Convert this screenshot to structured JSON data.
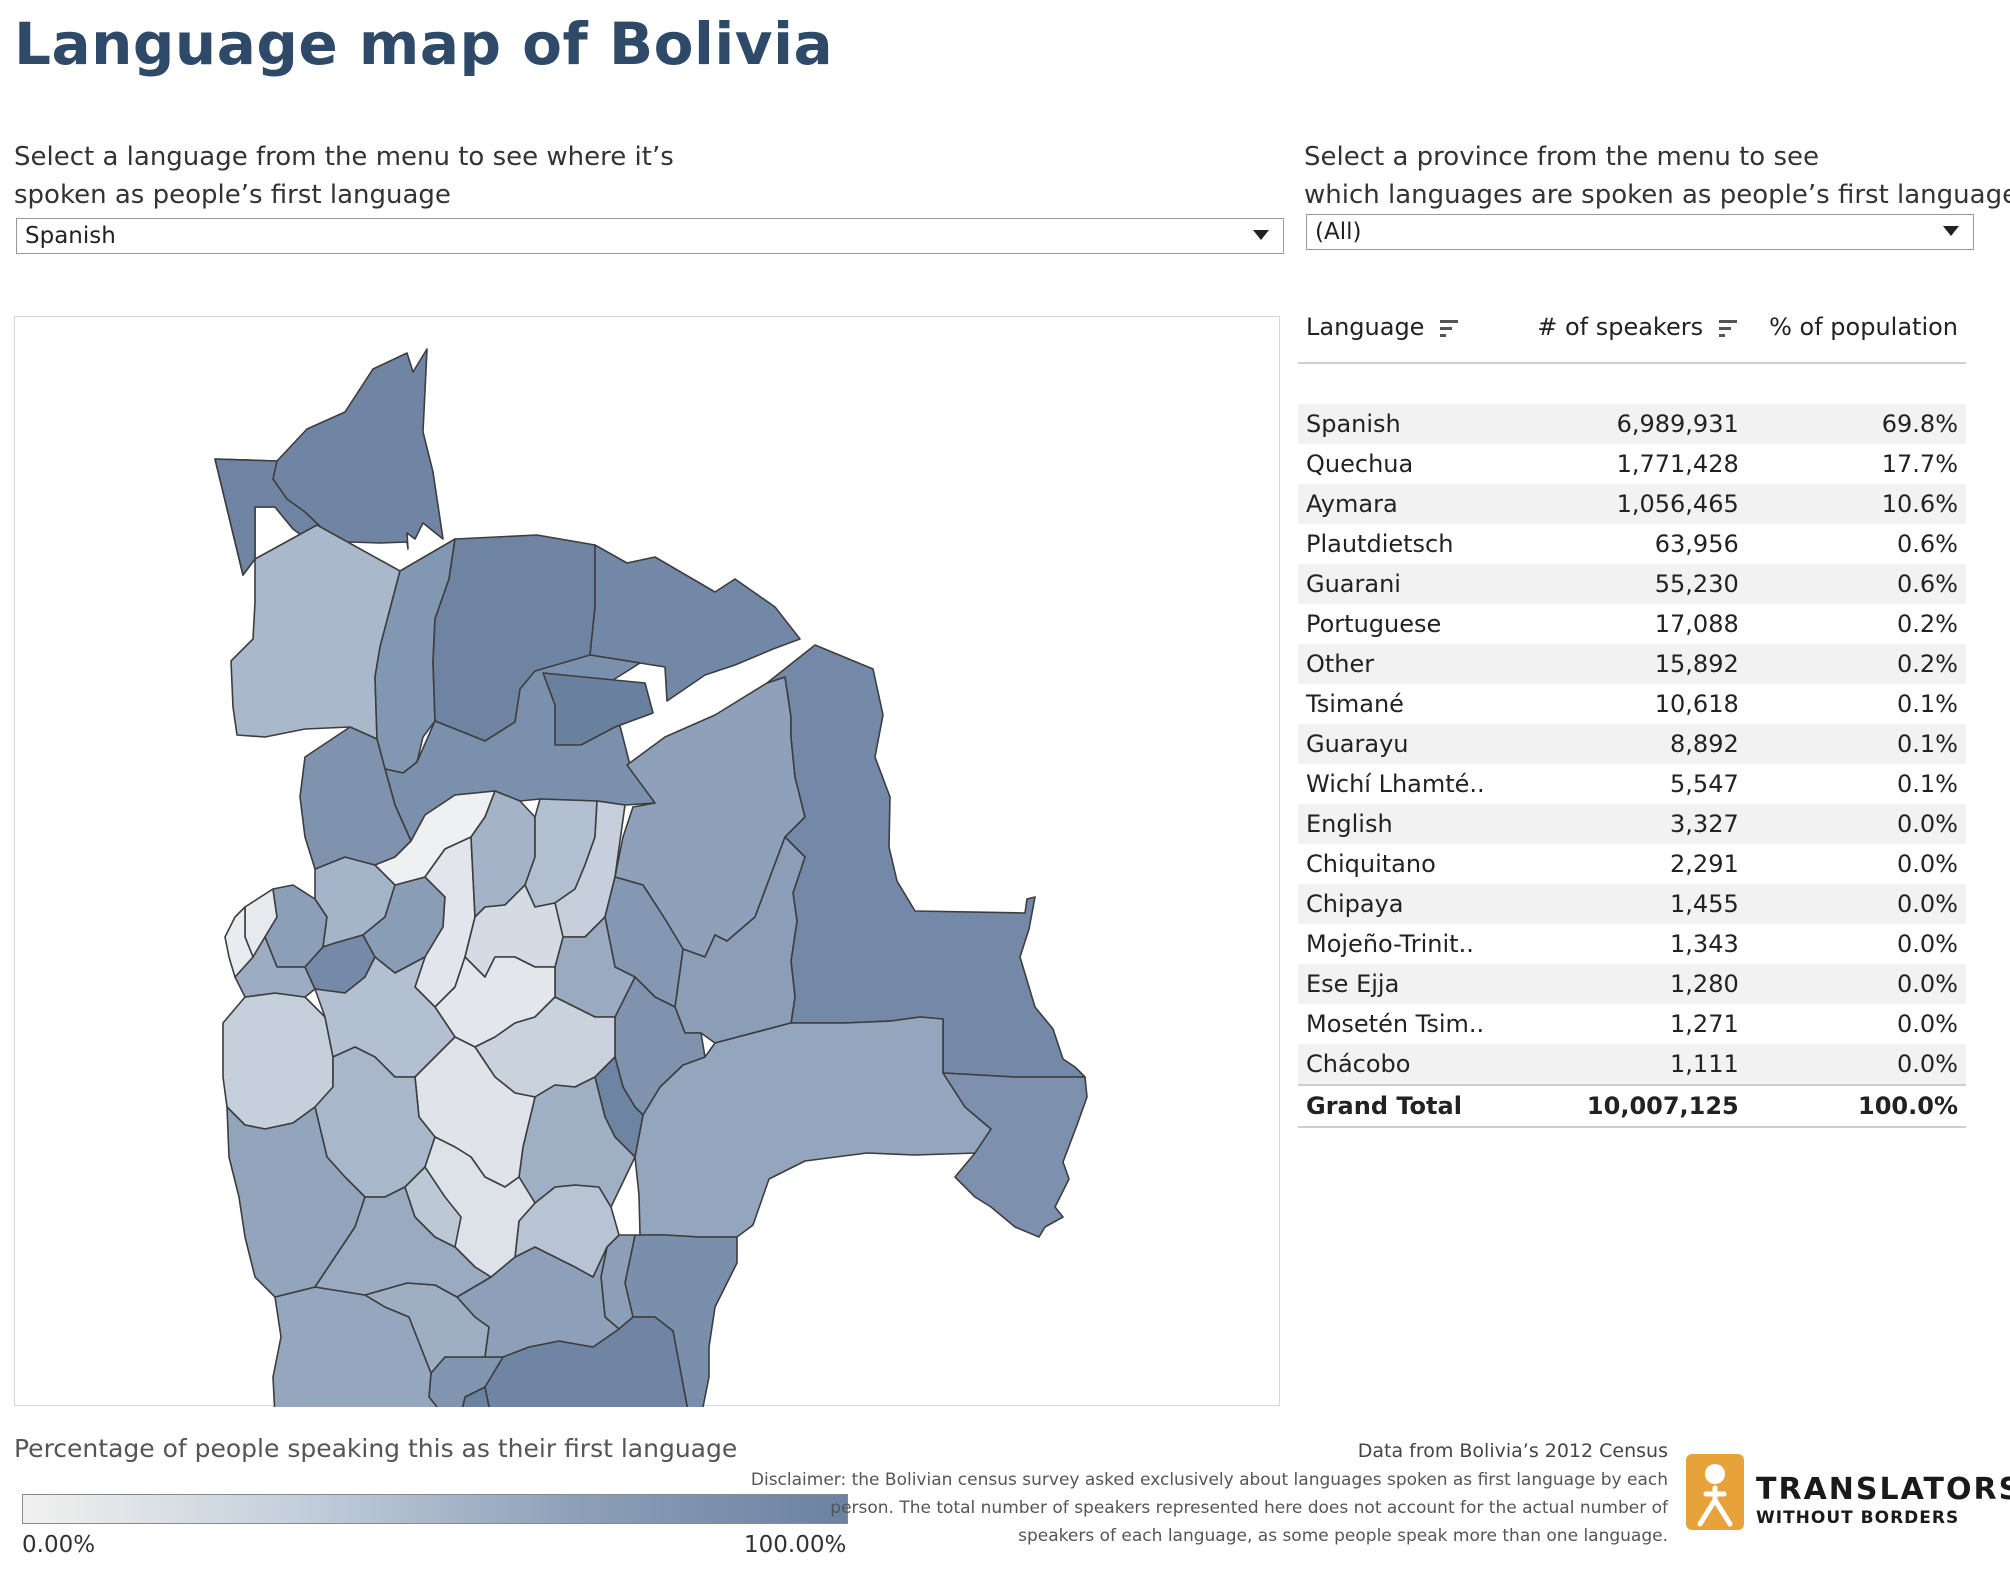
{
  "page": {
    "title": "Language map of Bolivia"
  },
  "language_filter": {
    "prompt_line1": "Select a language from the menu to see where it’s",
    "prompt_line2": "spoken as people’s first language",
    "selected": "Spanish"
  },
  "province_filter": {
    "prompt_line1": "Select a province from the menu to see",
    "prompt_line2": "which languages are spoken as people’s first language",
    "selected": "(All)"
  },
  "table": {
    "headers": {
      "language": "Language",
      "speakers": "# of speakers",
      "percent": "% of population"
    },
    "rows": [
      {
        "language": "Spanish",
        "speakers": "6,989,931",
        "percent": "69.8%"
      },
      {
        "language": "Quechua",
        "speakers": "1,771,428",
        "percent": "17.7%"
      },
      {
        "language": "Aymara",
        "speakers": "1,056,465",
        "percent": "10.6%"
      },
      {
        "language": "Plautdietsch",
        "speakers": "63,956",
        "percent": "0.6%"
      },
      {
        "language": "Guarani",
        "speakers": "55,230",
        "percent": "0.6%"
      },
      {
        "language": "Portuguese",
        "speakers": "17,088",
        "percent": "0.2%"
      },
      {
        "language": "Other",
        "speakers": "15,892",
        "percent": "0.2%"
      },
      {
        "language": "Tsimané",
        "speakers": "10,618",
        "percent": "0.1%"
      },
      {
        "language": "Guarayu",
        "speakers": "8,892",
        "percent": "0.1%"
      },
      {
        "language": "Wichí Lhamté..",
        "speakers": "5,547",
        "percent": "0.1%"
      },
      {
        "language": "English",
        "speakers": "3,327",
        "percent": "0.0%"
      },
      {
        "language": "Chiquitano",
        "speakers": "2,291",
        "percent": "0.0%"
      },
      {
        "language": "Chipaya",
        "speakers": "1,455",
        "percent": "0.0%"
      },
      {
        "language": "Mojeño-Trinit..",
        "speakers": "1,343",
        "percent": "0.0%"
      },
      {
        "language": "Ese Ejja",
        "speakers": "1,280",
        "percent": "0.0%"
      },
      {
        "language": "Mosetén Tsim..",
        "speakers": "1,271",
        "percent": "0.0%"
      },
      {
        "language": "Chácobo",
        "speakers": "1,111",
        "percent": "0.0%"
      }
    ],
    "total": {
      "language": "Grand Total",
      "speakers": "10,007,125",
      "percent": "100.0%"
    }
  },
  "legend": {
    "title": "Percentage of people speaking this as their first language",
    "min_label": "0.00%",
    "max_label": "100.00%",
    "color_low": "#f1f1ef",
    "color_high": "#6b82a2"
  },
  "footer": {
    "source": "Data from Bolivia’s 2012 Census",
    "disclaimer_line1": "Disclaimer: the Bolivian census survey asked exclusively about languages spoken as first language by each",
    "disclaimer_line2": "person. The total number of speakers represented here does not account for the actual  number of",
    "disclaimer_line3": "speakers of each language, as some people speak more than one language."
  },
  "logo": {
    "line1": "TRANSLATORS",
    "line2": "WITHOUT BORDERS",
    "accent_color": "#e8a23a"
  }
}
